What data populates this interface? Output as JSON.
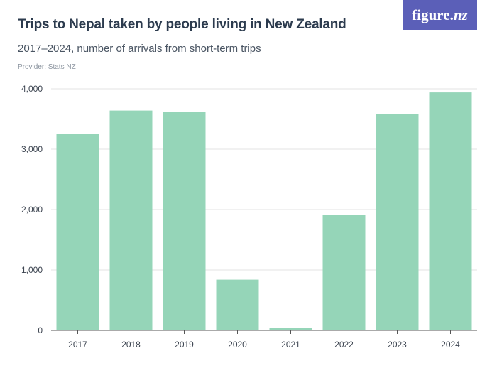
{
  "header": {
    "title": "Trips to Nepal taken by people living in New Zealand",
    "subtitle": "2017–2024, number of arrivals from short-term trips",
    "provider": "Provider: Stats NZ"
  },
  "logo": {
    "main": "figure.",
    "suffix": "nz",
    "color": "#5b5fb8"
  },
  "chart_data": {
    "type": "bar",
    "categories": [
      "2017",
      "2018",
      "2019",
      "2020",
      "2021",
      "2022",
      "2023",
      "2024"
    ],
    "values": [
      3250,
      3640,
      3620,
      840,
      45,
      1910,
      3580,
      3940
    ],
    "ylim": [
      0,
      4000
    ],
    "yticks": [
      0,
      1000,
      2000,
      3000,
      4000
    ],
    "ytick_labels": [
      "0",
      "1,000",
      "2,000",
      "3,000",
      "4,000"
    ],
    "grid": true,
    "bar_color": "#95d5b8",
    "legend": "none"
  }
}
